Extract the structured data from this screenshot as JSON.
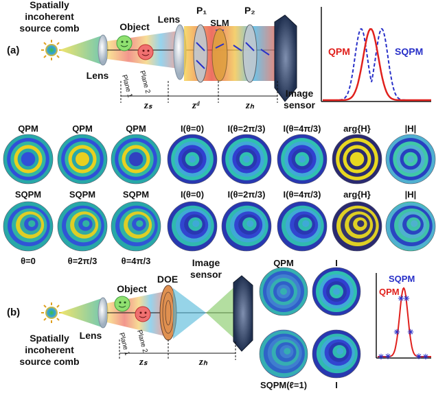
{
  "panel_a": {
    "tag": "(a)",
    "source_line1": "Spatially",
    "source_line2": "incoherent",
    "source_line3": "source comb",
    "lens1": "Lens",
    "object": "Object",
    "lens2": "Lens",
    "p1": "P₁",
    "slm": "SLM",
    "p2": "P₂",
    "plane1": "Plane 1",
    "plane2": "Plane 2",
    "image_line1": "Image",
    "image_line2": "sensor",
    "zs": "zₛ",
    "zd": "zᵈ",
    "zh": "zₕ",
    "plot_qpm": "QPM",
    "plot_sqpm": "SQPM"
  },
  "grid": {
    "row1": [
      "QPM",
      "QPM",
      "QPM",
      "I(θ=0)",
      "I(θ=2π/3)",
      "I(θ=4π/3)",
      "arg{H}",
      "|H|"
    ],
    "row2": [
      "SQPM",
      "SQPM",
      "SQPM",
      "I(θ=0)",
      "I(θ=2π/3)",
      "I(θ=4π/3)",
      "arg{H}",
      "|H|"
    ],
    "theta": [
      "θ=0",
      "θ=2π/3",
      "θ=4π/3"
    ]
  },
  "panel_b": {
    "tag": "(b)",
    "source_line1": "Spatially",
    "source_line2": "incoherent",
    "source_line3": "source comb",
    "lens": "Lens",
    "object": "Object",
    "doe": "DOE",
    "image_line1": "Image",
    "image_line2": "sensor",
    "plane1": "Plane 1",
    "plane2": "Plane 2",
    "zs": "zₛ",
    "zh": "zₕ",
    "qpm": "QPM",
    "i_top": "I",
    "sqpm": "SQPM(ℓ=1)",
    "i_bottom": "I",
    "plot_sqpm": "SQPM",
    "plot_qpm": "QPM"
  },
  "colors": {
    "qpm": "#e0201c",
    "sqpm": "#2830c8",
    "ring_yellow": "#e8d020",
    "ring_teal": "#28b0a0",
    "ring_blue": "#3050d8"
  }
}
